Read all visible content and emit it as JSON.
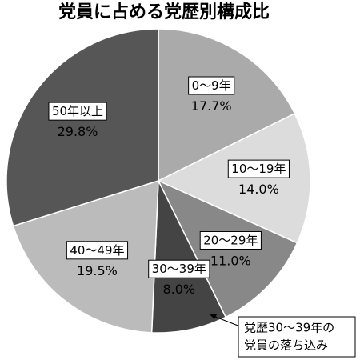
{
  "chart_data": {
    "type": "pie",
    "title": "党員に占める党歴別構成比",
    "categories": [
      "0～9年",
      "10～19年",
      "20～29年",
      "30～39年",
      "40～49年",
      "50年以上"
    ],
    "values": [
      17.7,
      14.0,
      11.0,
      8.0,
      19.5,
      29.8
    ],
    "value_labels": [
      "17.7%",
      "14.0%",
      "11.0%",
      "8.0%",
      "19.5%",
      "29.8%"
    ],
    "colors": [
      "#aaaaaa",
      "#dcdcdc",
      "#888888",
      "#444444",
      "#bbbbbb",
      "#565656"
    ],
    "annotation": [
      "党歴30～39年の",
      "党員の落ち込み"
    ]
  }
}
